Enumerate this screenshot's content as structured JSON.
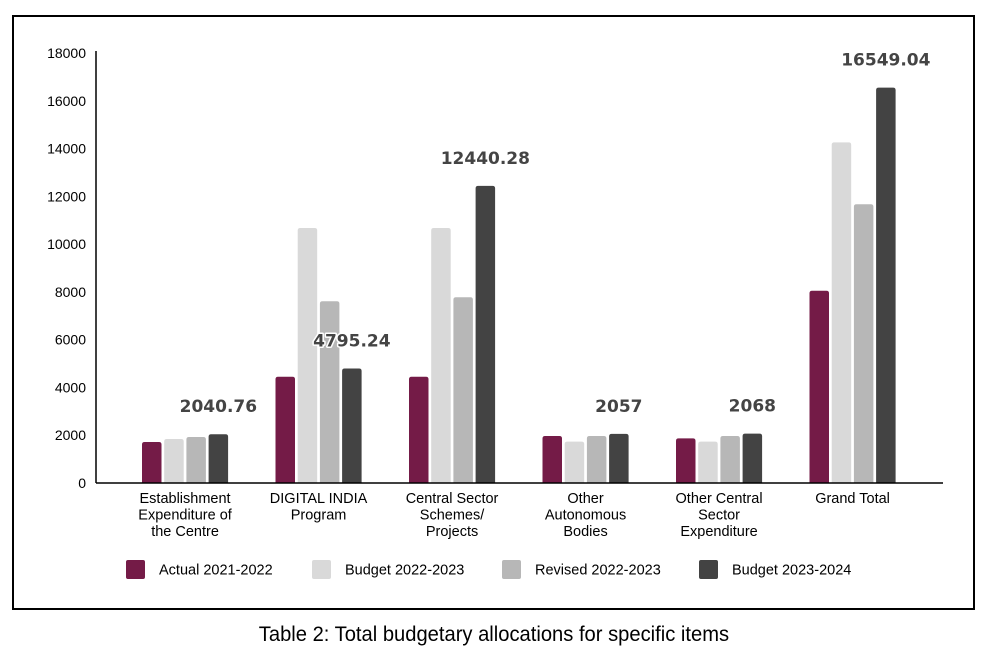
{
  "chart_data": {
    "type": "bar",
    "title": "",
    "xlabel": "",
    "ylabel": "",
    "ylim": [
      0,
      18000
    ],
    "yticks": [
      0,
      2000,
      4000,
      6000,
      8000,
      10000,
      12000,
      14000,
      16000,
      18000
    ],
    "grid": false,
    "legend_position": "bottom",
    "categories": [
      [
        "Establishment",
        "Expenditure of",
        "the Centre"
      ],
      [
        "DIGITAL INDIA",
        "Program"
      ],
      [
        "Central Sector",
        "Schemes/",
        "Projects"
      ],
      [
        "Other",
        "Autonomous",
        "Bodies"
      ],
      [
        "Other Central",
        "Sector",
        "Expenditure"
      ],
      [
        "Grand Total"
      ]
    ],
    "series": [
      {
        "name": "Actual 2021-2022",
        "color": "#741b47",
        "values": [
          1716,
          4450,
          4450,
          1967,
          1870,
          8050
        ]
      },
      {
        "name": "Budget 2022-2023",
        "color": "#d9d9d9",
        "values": [
          1842,
          10674,
          10674,
          1730,
          1730,
          14260
        ]
      },
      {
        "name": "Revised 2022-2023",
        "color": "#b7b7b7",
        "values": [
          1926,
          7606,
          7773,
          1967,
          1967,
          11666
        ]
      },
      {
        "name": "Budget 2023-2024",
        "color": "#434343",
        "values": [
          2040.76,
          4795.24,
          12440.28,
          2057,
          2068,
          16549.04
        ]
      }
    ],
    "data_labels": [
      "2040.76",
      "4795.24",
      "12440.28",
      "2057",
      "2068",
      "16549.04"
    ],
    "data_label_series": 3
  },
  "caption": "Table 2: Total budgetary allocations for specific items"
}
